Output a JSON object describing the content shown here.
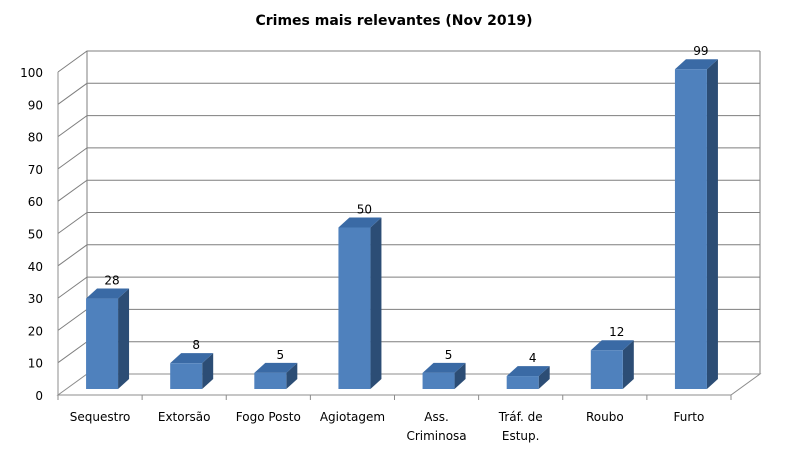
{
  "chart_data": {
    "type": "bar",
    "title": "Crimes mais relevantes (Nov 2019)",
    "categories": [
      "Sequestro",
      "Extorsão",
      "Fogo Posto",
      "Agiotagem",
      "Ass. Criminosa",
      "Tráf. de Estup.",
      "Roubo",
      "Furto"
    ],
    "category_lines": [
      [
        "Sequestro"
      ],
      [
        "Extorsão"
      ],
      [
        "Fogo Posto"
      ],
      [
        "Agiotagem"
      ],
      [
        "Ass.",
        "Criminosa"
      ],
      [
        "Tráf. de",
        "Estup."
      ],
      [
        "Roubo"
      ],
      [
        "Furto"
      ]
    ],
    "values": [
      28,
      8,
      5,
      50,
      5,
      4,
      12,
      99
    ],
    "value_labels": [
      "28",
      "8",
      "5",
      "50",
      "5",
      "4",
      "12",
      "99"
    ],
    "ylim": [
      0,
      100
    ],
    "yticks": [
      "0",
      "10",
      "20",
      "30",
      "40",
      "50",
      "60",
      "70",
      "80",
      "90",
      "100"
    ],
    "grid": true,
    "legend": false,
    "style": "3d-column",
    "colors": {
      "bar_front": "#4f81bd",
      "bar_side": "#2c4d75",
      "bar_top": "#3a6aa5",
      "grid": "#7f7f7f"
    }
  }
}
